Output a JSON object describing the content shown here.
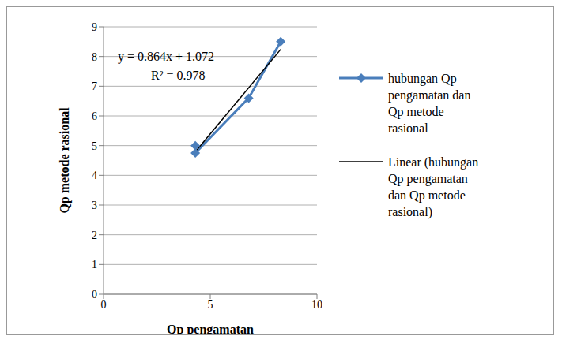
{
  "chart_data": {
    "type": "line",
    "title": null,
    "x_label": "Qp pengamatan",
    "y_label": "Qp metode rasional",
    "series": [
      {
        "name": "hubungan Qp pengamatan dan Qp metode rasional",
        "color": "#4a7ebb",
        "marker": "diamond",
        "line_style": "solid",
        "x": [
          4.3,
          4.3,
          6.8,
          8.3
        ],
        "values": [
          5.0,
          4.75,
          6.6,
          8.5
        ]
      },
      {
        "name": "Linear (hubungan Qp pengamatan dan Qp metode rasional)",
        "color": "#000000",
        "marker": "none",
        "line_style": "solid",
        "x": [
          4.3,
          8.3
        ],
        "values": [
          4.79,
          8.24
        ]
      }
    ],
    "annotations": [
      "y = 0.864x + 1.072",
      "R² = 0.978"
    ],
    "xlim": [
      0,
      10
    ],
    "xticks": [
      0,
      5,
      10
    ],
    "ylim": [
      0,
      9
    ],
    "yticks": [
      0,
      1,
      2,
      3,
      4,
      5,
      6,
      7,
      8,
      9
    ],
    "grid": true,
    "legend": "right"
  }
}
